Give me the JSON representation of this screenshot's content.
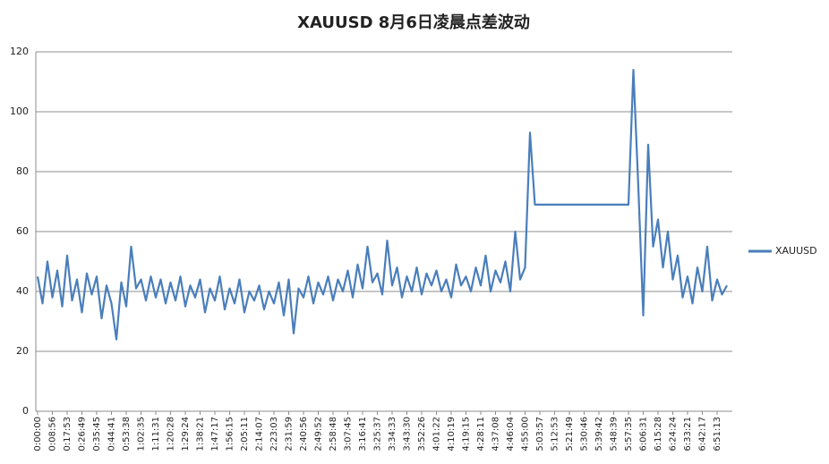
{
  "chart_data": {
    "type": "line",
    "title": "XAUUSD 8月6日凌晨点差波动",
    "categories": [
      "0:00:00",
      null,
      null,
      "0:08:56",
      null,
      null,
      "0:17:53",
      null,
      null,
      "0:26:49",
      null,
      null,
      "0:35:45",
      null,
      null,
      "0:44:41",
      null,
      null,
      "0:53:38",
      null,
      null,
      "1:02:35",
      null,
      null,
      "1:11:31",
      null,
      null,
      "1:20:28",
      null,
      null,
      "1:29:24",
      null,
      null,
      "1:38:21",
      null,
      null,
      "1:47:17",
      null,
      null,
      "1:56:15",
      null,
      null,
      "2:05:11",
      null,
      null,
      "2:14:07",
      null,
      null,
      "2:23:03",
      null,
      null,
      "2:31:59",
      null,
      null,
      "2:40:56",
      null,
      null,
      "2:49:52",
      null,
      null,
      "2:58:48",
      null,
      null,
      "3:07:45",
      null,
      null,
      "3:16:41",
      null,
      null,
      "3:25:37",
      null,
      null,
      "3:34:33",
      null,
      null,
      "3:43:30",
      null,
      null,
      "3:52:26",
      null,
      null,
      "4:01:22",
      null,
      null,
      "4:10:19",
      null,
      null,
      "4:19:15",
      null,
      null,
      "4:28:11",
      null,
      null,
      "4:37:08",
      null,
      null,
      "4:46:04",
      null,
      null,
      "4:55:00",
      null,
      null,
      "5:03:57",
      null,
      null,
      "5:12:53",
      null,
      null,
      "5:21:49",
      null,
      null,
      "5:30:46",
      null,
      null,
      "5:39:42",
      null,
      null,
      "5:48:39",
      null,
      null,
      "5:57:35",
      null,
      null,
      "6:06:31",
      null,
      null,
      "6:15:28",
      null,
      null,
      "6:24:24",
      null,
      null,
      "6:33:21",
      null,
      null,
      "6:42:17",
      null,
      null,
      "6:51:13",
      null,
      null
    ],
    "series": [
      {
        "name": "XAUUSD",
        "color": "#4a7ebb",
        "values": [
          45,
          36,
          50,
          38,
          47,
          35,
          52,
          37,
          44,
          33,
          46,
          39,
          45,
          31,
          42,
          36,
          24,
          43,
          35,
          55,
          41,
          44,
          37,
          45,
          38,
          44,
          36,
          43,
          37,
          45,
          35,
          42,
          38,
          44,
          33,
          41,
          37,
          45,
          34,
          41,
          36,
          44,
          33,
          40,
          37,
          42,
          34,
          40,
          36,
          43,
          32,
          44,
          26,
          41,
          38,
          45,
          36,
          43,
          39,
          45,
          37,
          44,
          40,
          47,
          38,
          49,
          41,
          55,
          43,
          46,
          39,
          57,
          42,
          48,
          38,
          45,
          40,
          48,
          39,
          46,
          42,
          47,
          40,
          44,
          38,
          49,
          42,
          45,
          40,
          48,
          42,
          52,
          40,
          47,
          43,
          50,
          40,
          60,
          44,
          48,
          93,
          69,
          69,
          69,
          69,
          69,
          69,
          69,
          69,
          69,
          69,
          69,
          69,
          69,
          69,
          69,
          69,
          69,
          69,
          69,
          69,
          114,
          75,
          32,
          89,
          55,
          64,
          48,
          60,
          44,
          52,
          38,
          45,
          36,
          48,
          40,
          55,
          37,
          44,
          39,
          42
        ]
      }
    ],
    "ylim": [
      0,
      120
    ],
    "yticks": [
      0,
      20,
      40,
      60,
      80,
      100,
      120
    ],
    "grid": true,
    "legend": "right"
  }
}
